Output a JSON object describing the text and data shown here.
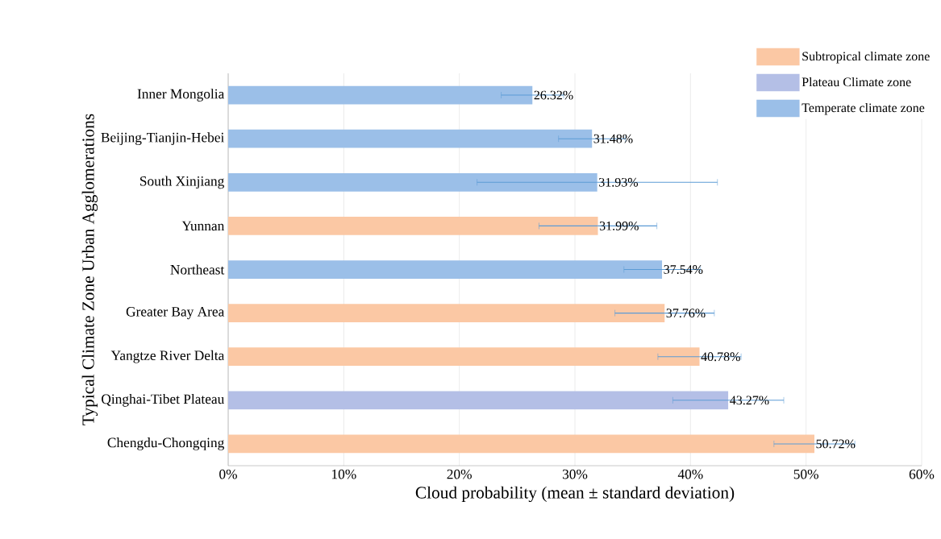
{
  "chart_data": {
    "type": "bar",
    "orientation": "horizontal",
    "categories": [
      "Inner Mongolia",
      "Beijing-Tianjin-Hebei",
      "South Xinjiang",
      "Yunnan",
      "Northeast",
      "Greater Bay Area",
      "Yangtze River Delta",
      "Qinghai-Tibet Plateau",
      "Chengdu-Chongqing"
    ],
    "series": [
      {
        "name": "Subtropical climate zone",
        "color": "#fbc8a4",
        "values": [
          null,
          null,
          null,
          31.99,
          null,
          37.76,
          40.78,
          null,
          50.72
        ],
        "errors": [
          null,
          null,
          null,
          5.1,
          null,
          4.3,
          3.6,
          null,
          3.5
        ],
        "value_labels": [
          null,
          null,
          null,
          "31.99%",
          null,
          "37.76%",
          "40.78%",
          null,
          "50.72%"
        ]
      },
      {
        "name": "Plateau Climate zone",
        "color": "#b4bfe6",
        "values": [
          null,
          null,
          null,
          null,
          null,
          null,
          null,
          43.27,
          null
        ],
        "errors": [
          null,
          null,
          null,
          null,
          null,
          null,
          null,
          4.8,
          null
        ],
        "value_labels": [
          null,
          null,
          null,
          null,
          null,
          null,
          null,
          "43.27%",
          null
        ]
      },
      {
        "name": "Temperate climate zone",
        "color": "#9bbfe8",
        "values": [
          26.32,
          31.48,
          31.93,
          null,
          37.54,
          null,
          null,
          null,
          null
        ],
        "errors": [
          2.7,
          2.9,
          10.4,
          null,
          3.3,
          null,
          null,
          null,
          null
        ],
        "value_labels": [
          "26.32%",
          "31.48%",
          "31.93%",
          null,
          "37.54%",
          null,
          null,
          null,
          null
        ]
      }
    ],
    "xlim": [
      0,
      60
    ],
    "xticks": [
      {
        "value": 0,
        "label": "0%"
      },
      {
        "value": 10,
        "label": "10%"
      },
      {
        "value": 20,
        "label": "20%"
      },
      {
        "value": 30,
        "label": "30%"
      },
      {
        "value": 40,
        "label": "40%"
      },
      {
        "value": 50,
        "label": "50%"
      },
      {
        "value": 60,
        "label": "60%"
      }
    ],
    "xlabel": "Cloud probability (mean ± standard deviation)",
    "ylabel": "Typical Climate Zone Urban Agglomerations",
    "grid": "x",
    "legend": "top right"
  }
}
